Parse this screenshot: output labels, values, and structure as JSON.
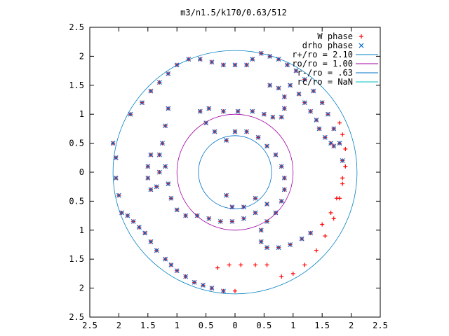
{
  "chart_data": {
    "type": "scatter",
    "title": "m3/n1.5/k170/0.63/512",
    "xlabel": "",
    "ylabel": "",
    "xlim": [
      -2.5,
      2.5
    ],
    "ylim": [
      -2.5,
      2.5
    ],
    "x_tick_labels": [
      "2.5",
      "2",
      "1.5",
      "1",
      "0.5",
      "0",
      "0.5",
      "1",
      "1.5",
      "2",
      "2.5"
    ],
    "y_tick_labels": [
      "2.5",
      "2",
      "1.5",
      "1",
      "0.5",
      "0",
      "0.5",
      "1",
      "1.5",
      "2",
      "2.5"
    ],
    "grid": false,
    "legend_position": "top-right",
    "legend": [
      {
        "label": "W phase",
        "kind": "marker",
        "marker": "+",
        "color": "#ff0000"
      },
      {
        "label": "drho phase",
        "kind": "marker",
        "marker": "x",
        "color": "#0066cc"
      },
      {
        "label": "r+/ro = 2.10",
        "kind": "line",
        "color": "#0080c0"
      },
      {
        "label": "ro/ro = 1.00",
        "kind": "line",
        "color": "#a000a0"
      },
      {
        "label": "r-/ro = .63",
        "kind": "line",
        "color": "#0070c8"
      },
      {
        "label": "rc/ro = NaN",
        "kind": "line",
        "color": "#00c0c0"
      }
    ],
    "circles": [
      {
        "name": "r+/ro",
        "radius": 2.1,
        "color": "#0080c0"
      },
      {
        "name": "ro/ro",
        "radius": 1.0,
        "color": "#a000a0"
      },
      {
        "name": "r-/ro",
        "radius": 0.63,
        "color": "#0070c8"
      }
    ],
    "series": [
      {
        "name": "W phase",
        "color": "#ff0000",
        "marker": "+",
        "points": [
          [
            -2.1,
            0.5
          ],
          [
            -2.05,
            0.25
          ],
          [
            -2.05,
            -0.1
          ],
          [
            -2.0,
            -0.4
          ],
          [
            -1.95,
            -0.7
          ],
          [
            -1.85,
            -0.75
          ],
          [
            -1.75,
            -0.85
          ],
          [
            -1.65,
            -0.95
          ],
          [
            -1.55,
            -1.05
          ],
          [
            -1.45,
            -1.2
          ],
          [
            -1.35,
            -1.35
          ],
          [
            -1.2,
            -1.5
          ],
          [
            -1.1,
            -1.6
          ],
          [
            -1.0,
            -1.7
          ],
          [
            -0.85,
            -1.8
          ],
          [
            -0.7,
            -1.9
          ],
          [
            -0.55,
            -1.95
          ],
          [
            -0.4,
            -2.0
          ],
          [
            -0.2,
            -2.05
          ],
          [
            0.0,
            -2.05
          ],
          [
            -1.8,
            1.0
          ],
          [
            -1.6,
            1.2
          ],
          [
            -1.45,
            1.4
          ],
          [
            -1.3,
            1.55
          ],
          [
            -1.15,
            1.7
          ],
          [
            -1.0,
            1.85
          ],
          [
            -0.8,
            1.95
          ],
          [
            -0.6,
            1.95
          ],
          [
            -0.4,
            1.9
          ],
          [
            -0.2,
            1.85
          ],
          [
            0.0,
            1.85
          ],
          [
            0.2,
            1.85
          ],
          [
            0.3,
            1.95
          ],
          [
            0.45,
            2.05
          ],
          [
            0.6,
            2.0
          ],
          [
            0.75,
            1.95
          ],
          [
            0.9,
            1.85
          ],
          [
            1.05,
            1.75
          ],
          [
            1.2,
            1.6
          ],
          [
            1.35,
            1.4
          ],
          [
            1.5,
            1.2
          ],
          [
            1.6,
            1.0
          ],
          [
            1.7,
            0.75
          ],
          [
            1.8,
            0.5
          ],
          [
            1.85,
            0.2
          ],
          [
            1.85,
            -0.1
          ],
          [
            1.8,
            -0.45
          ],
          [
            1.7,
            -0.8
          ],
          [
            1.55,
            -1.1
          ],
          [
            1.4,
            -1.35
          ],
          [
            1.2,
            -1.6
          ],
          [
            1.0,
            -1.75
          ],
          [
            0.8,
            -1.8
          ],
          [
            0.55,
            -1.6
          ],
          [
            0.35,
            -1.6
          ],
          [
            0.1,
            -1.6
          ],
          [
            -0.1,
            -1.6
          ],
          [
            -0.3,
            -1.65
          ],
          [
            -1.45,
            0.3
          ],
          [
            -1.5,
            0.1
          ],
          [
            -1.5,
            -0.1
          ],
          [
            -1.45,
            -0.3
          ],
          [
            -1.35,
            -0.25
          ],
          [
            -1.3,
            0.0
          ],
          [
            -1.3,
            0.3
          ],
          [
            -1.25,
            0.5
          ],
          [
            -1.2,
            0.8
          ],
          [
            -1.15,
            1.1
          ],
          [
            -1.2,
            0.1
          ],
          [
            -1.15,
            -0.2
          ],
          [
            -1.1,
            -0.45
          ],
          [
            -1.0,
            -0.65
          ],
          [
            -0.85,
            -0.75
          ],
          [
            -0.65,
            -0.75
          ],
          [
            -0.45,
            -0.8
          ],
          [
            -0.25,
            -0.85
          ],
          [
            -0.05,
            -0.85
          ],
          [
            0.15,
            -0.8
          ],
          [
            0.35,
            -0.7
          ],
          [
            0.55,
            -0.55
          ],
          [
            -0.15,
            0.55
          ],
          [
            -0.35,
            0.7
          ],
          [
            -0.5,
            0.85
          ],
          [
            -0.6,
            1.05
          ],
          [
            -0.45,
            1.1
          ],
          [
            -0.2,
            1.05
          ],
          [
            0.05,
            1.05
          ],
          [
            0.3,
            1.05
          ],
          [
            0.5,
            1.0
          ],
          [
            0.65,
            0.95
          ],
          [
            0.8,
            0.95
          ],
          [
            0.85,
            1.1
          ],
          [
            0.85,
            1.3
          ],
          [
            0.75,
            1.45
          ],
          [
            0.6,
            1.5
          ],
          [
            0.0,
            0.7
          ],
          [
            0.2,
            0.7
          ],
          [
            0.4,
            0.6
          ],
          [
            0.55,
            0.45
          ],
          [
            0.7,
            0.3
          ],
          [
            0.8,
            0.1
          ],
          [
            0.85,
            -0.1
          ],
          [
            0.85,
            -0.3
          ],
          [
            0.8,
            -0.5
          ],
          [
            0.7,
            -0.7
          ],
          [
            0.55,
            -0.85
          ],
          [
            0.45,
            -1.0
          ],
          [
            0.45,
            -1.2
          ],
          [
            0.55,
            -1.3
          ],
          [
            0.75,
            -1.3
          ],
          [
            0.95,
            -1.25
          ],
          [
            1.15,
            -1.15
          ],
          [
            1.3,
            -1.05
          ],
          [
            1.5,
            -0.9
          ],
          [
            1.65,
            -0.7
          ],
          [
            1.75,
            -0.45
          ],
          [
            1.85,
            -0.2
          ],
          [
            1.9,
            0.1
          ],
          [
            1.9,
            0.4
          ],
          [
            1.85,
            0.65
          ],
          [
            1.8,
            0.85
          ],
          [
            1.4,
            0.9
          ],
          [
            1.45,
            0.75
          ],
          [
            1.55,
            0.6
          ],
          [
            1.65,
            0.5
          ],
          [
            1.7,
            0.45
          ],
          [
            1.3,
            1.05
          ],
          [
            1.2,
            1.2
          ],
          [
            1.1,
            1.35
          ],
          [
            0.95,
            1.5
          ],
          [
            -0.15,
            -0.4
          ],
          [
            -0.05,
            -0.6
          ],
          [
            0.15,
            -0.6
          ],
          [
            0.35,
            -0.45
          ]
        ]
      },
      {
        "name": "drho phase",
        "color": "#0066cc",
        "marker": "x",
        "points": [
          [
            -2.1,
            0.5
          ],
          [
            -2.05,
            0.25
          ],
          [
            -2.05,
            -0.1
          ],
          [
            -2.0,
            -0.4
          ],
          [
            -1.95,
            -0.7
          ],
          [
            -1.85,
            -0.75
          ],
          [
            -1.75,
            -0.85
          ],
          [
            -1.65,
            -0.95
          ],
          [
            -1.55,
            -1.05
          ],
          [
            -1.45,
            -1.2
          ],
          [
            -1.35,
            -1.35
          ],
          [
            -1.2,
            -1.5
          ],
          [
            -1.1,
            -1.6
          ],
          [
            -1.0,
            -1.7
          ],
          [
            -0.85,
            -1.8
          ],
          [
            -0.7,
            -1.9
          ],
          [
            -0.55,
            -1.95
          ],
          [
            -0.4,
            -2.0
          ],
          [
            -0.2,
            -2.05
          ],
          [
            -1.8,
            1.0
          ],
          [
            -1.6,
            1.2
          ],
          [
            -1.45,
            1.4
          ],
          [
            -1.3,
            1.55
          ],
          [
            -1.15,
            1.7
          ],
          [
            -1.0,
            1.85
          ],
          [
            -0.8,
            1.95
          ],
          [
            -0.6,
            1.95
          ],
          [
            -0.4,
            1.9
          ],
          [
            -0.2,
            1.85
          ],
          [
            0.0,
            1.85
          ],
          [
            0.2,
            1.85
          ],
          [
            0.3,
            1.95
          ],
          [
            0.45,
            2.05
          ],
          [
            0.6,
            2.0
          ],
          [
            0.75,
            1.95
          ],
          [
            0.9,
            1.85
          ],
          [
            1.05,
            1.75
          ],
          [
            1.2,
            1.6
          ],
          [
            1.35,
            1.4
          ],
          [
            1.5,
            1.2
          ],
          [
            1.6,
            1.0
          ],
          [
            1.7,
            0.75
          ],
          [
            1.8,
            0.5
          ],
          [
            1.85,
            0.2
          ],
          [
            -1.45,
            0.3
          ],
          [
            -1.5,
            0.1
          ],
          [
            -1.5,
            -0.1
          ],
          [
            -1.45,
            -0.3
          ],
          [
            -1.35,
            -0.25
          ],
          [
            -1.3,
            0.0
          ],
          [
            -1.3,
            0.3
          ],
          [
            -1.25,
            0.5
          ],
          [
            -1.2,
            0.8
          ],
          [
            -1.15,
            1.1
          ],
          [
            -1.2,
            0.1
          ],
          [
            -1.15,
            -0.2
          ],
          [
            -1.1,
            -0.45
          ],
          [
            -1.0,
            -0.65
          ],
          [
            -0.85,
            -0.75
          ],
          [
            -0.65,
            -0.75
          ],
          [
            -0.45,
            -0.8
          ],
          [
            -0.25,
            -0.85
          ],
          [
            -0.05,
            -0.85
          ],
          [
            0.15,
            -0.8
          ],
          [
            0.35,
            -0.7
          ],
          [
            0.55,
            -0.55
          ],
          [
            -0.15,
            0.55
          ],
          [
            -0.35,
            0.7
          ],
          [
            -0.5,
            0.85
          ],
          [
            -0.6,
            1.05
          ],
          [
            -0.45,
            1.1
          ],
          [
            -0.2,
            1.05
          ],
          [
            0.05,
            1.05
          ],
          [
            0.3,
            1.05
          ],
          [
            0.5,
            1.0
          ],
          [
            0.65,
            0.95
          ],
          [
            0.8,
            0.95
          ],
          [
            0.85,
            1.1
          ],
          [
            0.85,
            1.3
          ],
          [
            0.75,
            1.45
          ],
          [
            0.6,
            1.5
          ],
          [
            0.0,
            0.7
          ],
          [
            0.2,
            0.7
          ],
          [
            0.4,
            0.6
          ],
          [
            0.55,
            0.45
          ],
          [
            0.7,
            0.3
          ],
          [
            0.8,
            0.1
          ],
          [
            0.85,
            -0.1
          ],
          [
            0.85,
            -0.3
          ],
          [
            0.8,
            -0.5
          ],
          [
            0.7,
            -0.7
          ],
          [
            0.55,
            -0.85
          ],
          [
            0.45,
            -1.0
          ],
          [
            0.45,
            -1.2
          ],
          [
            0.55,
            -1.3
          ],
          [
            0.75,
            -1.3
          ],
          [
            0.95,
            -1.25
          ],
          [
            1.15,
            -1.15
          ],
          [
            1.3,
            -1.05
          ],
          [
            1.4,
            0.9
          ],
          [
            1.45,
            0.75
          ],
          [
            1.55,
            0.6
          ],
          [
            1.65,
            0.5
          ],
          [
            1.7,
            0.45
          ],
          [
            1.3,
            1.05
          ],
          [
            1.2,
            1.2
          ],
          [
            1.1,
            1.35
          ],
          [
            0.95,
            1.5
          ],
          [
            -0.15,
            -0.4
          ],
          [
            -0.05,
            -0.6
          ],
          [
            0.15,
            -0.6
          ],
          [
            0.35,
            -0.45
          ]
        ]
      }
    ]
  }
}
